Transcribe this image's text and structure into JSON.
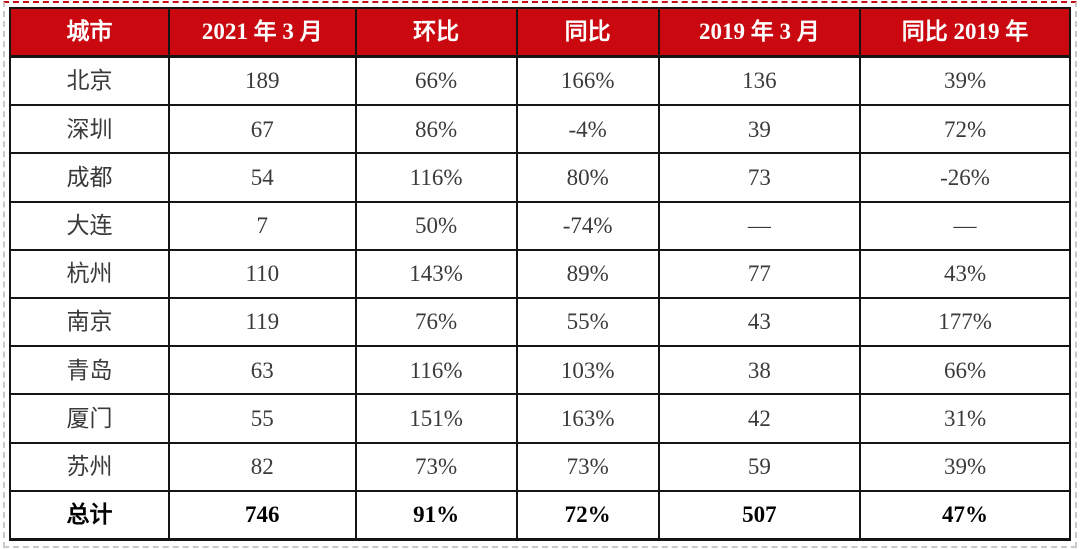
{
  "table": {
    "columns": [
      "城市",
      "2021 年 3 月",
      "环比",
      "同比",
      "2019 年 3 月",
      "同比 2019 年"
    ],
    "rows": [
      [
        "北京",
        "189",
        "66%",
        "166%",
        "136",
        "39%"
      ],
      [
        "深圳",
        "67",
        "86%",
        "-4%",
        "39",
        "72%"
      ],
      [
        "成都",
        "54",
        "116%",
        "80%",
        "73",
        "-26%"
      ],
      [
        "大连",
        "7",
        "50%",
        "-74%",
        "—",
        "—"
      ],
      [
        "杭州",
        "110",
        "143%",
        "89%",
        "77",
        "43%"
      ],
      [
        "南京",
        "119",
        "76%",
        "55%",
        "43",
        "177%"
      ],
      [
        "青岛",
        "63",
        "116%",
        "103%",
        "38",
        "66%"
      ],
      [
        "厦门",
        "55",
        "151%",
        "163%",
        "42",
        "31%"
      ],
      [
        "苏州",
        "82",
        "73%",
        "73%",
        "59",
        "39%"
      ]
    ],
    "total_row": [
      "总计",
      "746",
      "91%",
      "72%",
      "507",
      "47%"
    ],
    "column_widths_percent": [
      15,
      17.6,
      15.2,
      13.4,
      19,
      19.8
    ],
    "colors": {
      "header_bg": "#C9080F",
      "header_text": "#FFFFFF",
      "body_text": "#3A3A3A",
      "total_text": "#000000",
      "grid": "#141414",
      "outer_dash": "#C9C9C9"
    }
  },
  "chart_data": {
    "type": "table",
    "title": "",
    "columns": [
      "城市",
      "2021 年 3 月",
      "环比",
      "同比",
      "2019 年 3 月",
      "同比 2019 年"
    ],
    "cities": [
      "北京",
      "深圳",
      "成都",
      "大连",
      "杭州",
      "南京",
      "青岛",
      "厦门",
      "苏州"
    ],
    "series": [
      {
        "name": "2021 年 3 月",
        "values": [
          189,
          67,
          54,
          7,
          110,
          119,
          63,
          55,
          82
        ],
        "total": 746
      },
      {
        "name": "环比",
        "values": [
          "66%",
          "86%",
          "116%",
          "50%",
          "143%",
          "76%",
          "116%",
          "151%",
          "73%"
        ],
        "total": "91%"
      },
      {
        "name": "同比",
        "values": [
          "166%",
          "-4%",
          "80%",
          "-74%",
          "89%",
          "55%",
          "103%",
          "163%",
          "73%"
        ],
        "total": "72%"
      },
      {
        "name": "2019 年 3 月",
        "values": [
          136,
          39,
          73,
          null,
          77,
          43,
          38,
          42,
          59
        ],
        "total": 507
      },
      {
        "name": "同比 2019 年",
        "values": [
          "39%",
          "72%",
          "-26%",
          null,
          "43%",
          "177%",
          "66%",
          "31%",
          "39%"
        ],
        "total": "47%"
      }
    ],
    "total_row_label": "总计",
    "missing_value_symbol": "—"
  }
}
